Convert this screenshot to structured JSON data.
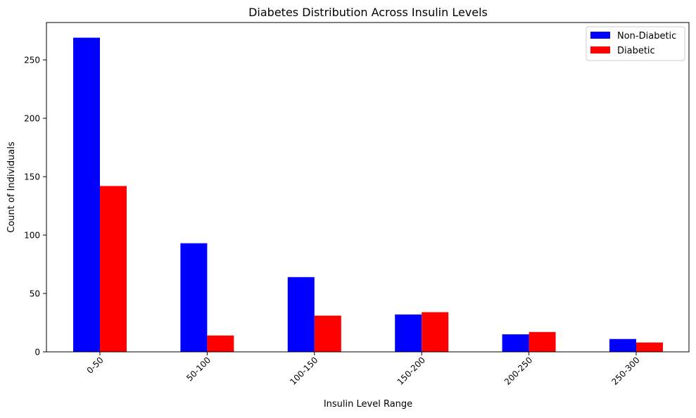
{
  "chart_data": {
    "type": "bar",
    "title": "Diabetes Distribution Across Insulin Levels",
    "xlabel": "Insulin Level Range",
    "ylabel": "Count of Individuals",
    "categories": [
      "0-50",
      "50-100",
      "100-150",
      "150-200",
      "200-250",
      "250-300"
    ],
    "series": [
      {
        "name": "Non-Diabetic",
        "color": "#0000ff",
        "values": [
          269,
          93,
          64,
          32,
          15,
          11
        ]
      },
      {
        "name": "Diabetic",
        "color": "#ff0000",
        "values": [
          142,
          14,
          31,
          34,
          17,
          8
        ]
      }
    ],
    "ylim": [
      0,
      282
    ],
    "yticks": [
      0,
      50,
      100,
      150,
      200,
      250
    ],
    "grid": false,
    "legend_position": "top-right"
  }
}
